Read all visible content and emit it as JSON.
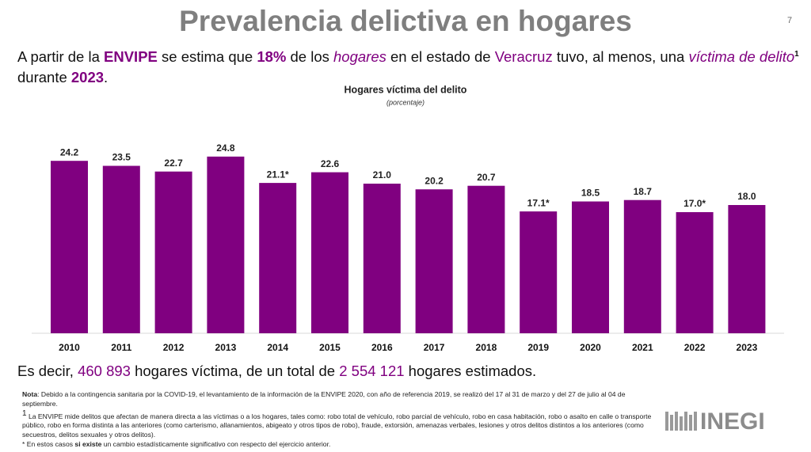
{
  "page": {
    "title": "Prevalencia delictiva en hogares",
    "page_number": "7",
    "intro": [
      "A partir de la ",
      "ENVIPE",
      " se estima que ",
      "18%",
      " de los ",
      "hogares",
      " en el estado de ",
      "Veracruz",
      " tuvo, al menos, una ",
      "víctima de delito",
      "1",
      " durante ",
      "2023",
      "."
    ],
    "summary": [
      "Es decir, ",
      "460 893",
      " hogares víctima, de un total de ",
      "2 554 121",
      " hogares estimados."
    ],
    "notes": [
      [
        "Nota",
        ": Debido a la contingencia sanitaria por la COVID-19, el levantamiento de la información de la ENVIPE 2020, con año de referencia 2019, se realizó del 17 al 31 de marzo y del 27 de julio al 04 de septiembre."
      ],
      [
        "1",
        " La ENVIPE mide delitos que afectan de manera directa a las víctimas o a los hogares, tales como: robo total de vehículo, robo parcial de vehículo, robo en casa habitación, robo o asalto en calle o transporte público, robo en forma distinta a las anteriores (como carterismo, allanamientos, abigeato y otros tipos de robo), fraude, extorsión, amenazas verbales, lesiones y otros delitos distintos a los anteriores (como secuestros, delitos sexuales y otros delitos)."
      ],
      [
        "*",
        " En estos casos ",
        "si existe",
        " un cambio estadísticamente significativo con respecto del ejercicio anterior."
      ]
    ],
    "logo": "INEGI"
  },
  "chart_data": {
    "type": "bar",
    "title": "Hogares víctima del delito",
    "subtitle": "(porcentaje)",
    "categories": [
      "2010",
      "2011",
      "2012",
      "2013",
      "2014",
      "2015",
      "2016",
      "2017",
      "2018",
      "2019",
      "2020",
      "2021",
      "2022",
      "2023"
    ],
    "values": [
      24.2,
      23.5,
      22.7,
      24.8,
      21.1,
      22.6,
      21.0,
      20.2,
      20.7,
      17.1,
      18.5,
      18.7,
      17.0,
      18.0
    ],
    "value_labels": [
      "24.2",
      "23.5",
      "22.7",
      "24.8",
      "21.1*",
      "22.6",
      "21.0",
      "20.2",
      "20.7",
      "17.1*",
      "18.5",
      "18.7",
      "17.0*",
      "18.0"
    ],
    "color": "#800080"
  }
}
